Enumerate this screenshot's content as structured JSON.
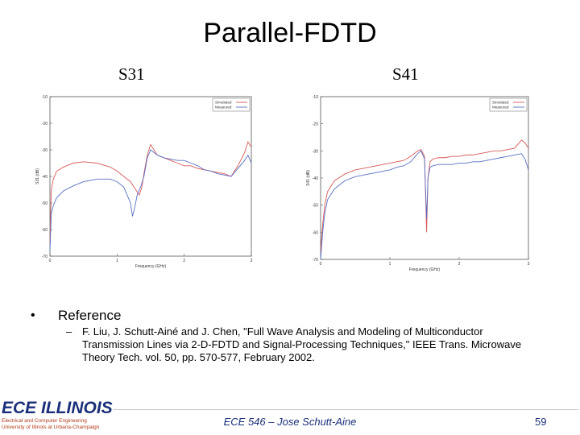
{
  "slide": {
    "title": "Parallel-FDTD",
    "reference_heading": "Reference",
    "reference_text": "F. Liu, J. Schutt-Ainé and J. Chen, \"Full Wave Analysis and Modeling of Multiconductor Transmission Lines via 2-D-FDTD and Signal-Processing Techniques,\" IEEE Trans. Microwave Theory Tech. vol. 50, pp. 570-577, February 2002.",
    "footer": "ECE 546 – Jose Schutt-Aine",
    "page_number": "59",
    "logo_text": "ECE ILLINOIS",
    "logo_sub1": "Electrical and Computer Engineering",
    "logo_sub2": "University of Illinois at Urbana-Champaign"
  },
  "colors": {
    "simulated": "#d85a5a",
    "measured": "#5a6fc4",
    "accent": "#1a2f7a"
  },
  "chart_data": [
    {
      "type": "line",
      "title": "S31",
      "xlabel": "Frequency (GHz)",
      "ylabel": "S31 (dB)",
      "xlim": [
        0,
        3
      ],
      "ylim": [
        -70,
        -10
      ],
      "xticks": [
        "0",
        "1",
        "2",
        "3"
      ],
      "yticks": [
        "-10",
        "-20",
        "-30",
        "-40",
        "-50",
        "-60",
        "-70"
      ],
      "legend": "top-right",
      "series": [
        {
          "name": "Simulated",
          "x": [
            0,
            0.02,
            0.05,
            0.1,
            0.2,
            0.35,
            0.5,
            0.7,
            0.9,
            1.0,
            1.1,
            1.2,
            1.33,
            1.37,
            1.4,
            1.45,
            1.5,
            1.55,
            1.6,
            1.7,
            1.8,
            1.9,
            2.0,
            2.1,
            2.2,
            2.3,
            2.4,
            2.5,
            2.6,
            2.7,
            2.8,
            2.9,
            2.95,
            3.0
          ],
          "y": [
            -65,
            -45,
            -41,
            -38,
            -36.5,
            -35,
            -34.5,
            -35,
            -36.5,
            -38,
            -40,
            -42,
            -47,
            -44,
            -39,
            -32,
            -28,
            -30,
            -32,
            -33,
            -34,
            -35,
            -36,
            -36,
            -37,
            -37.5,
            -38,
            -38.5,
            -39,
            -40,
            -36,
            -31,
            -27,
            -29
          ]
        },
        {
          "name": "Measured",
          "x": [
            0,
            0.02,
            0.05,
            0.1,
            0.2,
            0.35,
            0.5,
            0.7,
            0.9,
            1.0,
            1.1,
            1.15,
            1.2,
            1.23,
            1.26,
            1.3,
            1.35,
            1.4,
            1.45,
            1.5,
            1.6,
            1.7,
            1.8,
            1.9,
            2.0,
            2.1,
            2.2,
            2.3,
            2.4,
            2.5,
            2.6,
            2.7,
            2.8,
            2.9,
            2.95,
            3.0
          ],
          "y": [
            -68,
            -54,
            -51,
            -48,
            -45.5,
            -43.5,
            -42,
            -41,
            -41,
            -42,
            -44,
            -47,
            -50,
            -55,
            -52,
            -47,
            -44,
            -40,
            -33,
            -30,
            -32,
            -33,
            -33.5,
            -34,
            -34,
            -35,
            -36,
            -37.5,
            -38,
            -39,
            -39.5,
            -40,
            -37,
            -34,
            -32,
            -35
          ]
        }
      ]
    },
    {
      "type": "line",
      "title": "S41",
      "xlabel": "Frequency (GHz)",
      "ylabel": "S41 (dB)",
      "xlim": [
        0,
        3
      ],
      "ylim": [
        -70,
        -10
      ],
      "xticks": [
        "0",
        "1",
        "2",
        "3"
      ],
      "yticks": [
        "-10",
        "-20",
        "-30",
        "-40",
        "-50",
        "-60",
        "-70"
      ],
      "legend": "top-right",
      "series": [
        {
          "name": "Simulated",
          "x": [
            0,
            0.03,
            0.06,
            0.1,
            0.2,
            0.35,
            0.5,
            0.7,
            0.9,
            1.0,
            1.1,
            1.2,
            1.3,
            1.4,
            1.45,
            1.5,
            1.53,
            1.55,
            1.58,
            1.62,
            1.7,
            1.8,
            1.9,
            2.0,
            2.1,
            2.2,
            2.3,
            2.4,
            2.5,
            2.6,
            2.7,
            2.8,
            2.9,
            2.95,
            3.0
          ],
          "y": [
            -67,
            -57,
            -50,
            -45,
            -41,
            -38.5,
            -37,
            -36,
            -35,
            -34.5,
            -34,
            -33.5,
            -32,
            -30,
            -29.5,
            -32,
            -60,
            -40,
            -34,
            -33,
            -32.5,
            -32.5,
            -32,
            -32,
            -31.5,
            -31.5,
            -31,
            -30.5,
            -30,
            -30,
            -29.5,
            -29,
            -26,
            -27,
            -29
          ]
        },
        {
          "name": "Measured",
          "x": [
            0,
            0.03,
            0.06,
            0.1,
            0.2,
            0.35,
            0.5,
            0.7,
            0.9,
            1.0,
            1.1,
            1.2,
            1.3,
            1.4,
            1.45,
            1.5,
            1.53,
            1.55,
            1.58,
            1.62,
            1.7,
            1.8,
            1.9,
            2.0,
            2.1,
            2.2,
            2.3,
            2.4,
            2.5,
            2.6,
            2.7,
            2.8,
            2.9,
            2.95,
            3.0
          ],
          "y": [
            -70,
            -60,
            -53,
            -48,
            -44,
            -41,
            -39.5,
            -38.5,
            -37.5,
            -37,
            -36,
            -35.5,
            -34,
            -31,
            -30,
            -33,
            -55,
            -40,
            -36,
            -35.5,
            -35,
            -35,
            -35,
            -34.5,
            -34.5,
            -34,
            -34,
            -33.5,
            -33,
            -32.5,
            -32,
            -31.5,
            -31,
            -33,
            -37
          ]
        }
      ]
    }
  ]
}
